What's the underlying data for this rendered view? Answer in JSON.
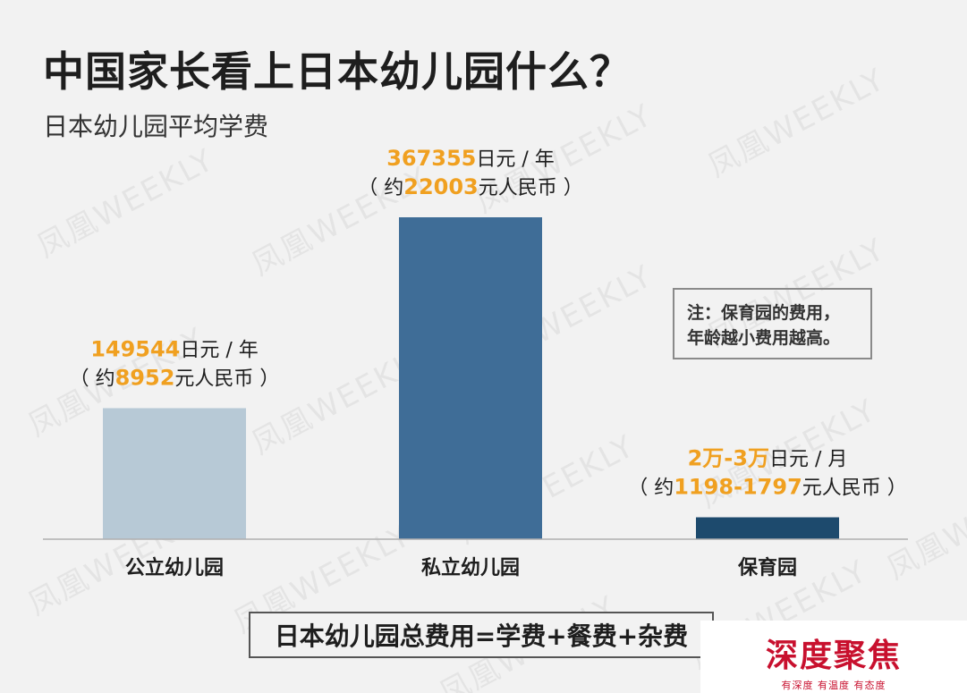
{
  "title": "中国家长看上日本幼儿园什么？",
  "subtitle": "日本幼儿园平均学费",
  "watermark": "凤凰WEEKLY",
  "note": {
    "line1": "注：保育园的费用，",
    "line2": "年龄越小费用越高。"
  },
  "formula": "日本幼儿园总费用=学费+餐费+杂费",
  "logo": {
    "main": "深度聚焦",
    "sub": "有深度 有温度 有态度"
  },
  "colors": {
    "accent": "#f0a020",
    "text": "#1e1e1e",
    "public": "#b7c9d6",
    "private": "#3f6d97",
    "nursery": "#1d4a6d"
  },
  "chart_data": {
    "type": "bar",
    "categories": [
      "公立幼儿园",
      "私立幼儿园",
      "保育园"
    ],
    "values": [
      149544,
      367355,
      25000
    ],
    "unit_note": "保育园 value shown as range 2万-3万 日元/月",
    "labels": [
      {
        "line1_num": "149544",
        "line1_unit": "日元 / 年",
        "line2_pre": "（ 约",
        "line2_num": "8952",
        "line2_post": "元人民币 ）"
      },
      {
        "line1_num": "367355",
        "line1_unit": "日元 / 年",
        "line2_pre": "（ 约",
        "line2_num": "22003",
        "line2_post": "元人民币 ）"
      },
      {
        "line1_num": "2万-3万",
        "line1_unit": "日元 / 月",
        "line2_pre": "（ 约",
        "line2_num": "1198-1797",
        "line2_post": "元人民币 ）"
      }
    ],
    "ylim": [
      0,
      367355
    ]
  }
}
